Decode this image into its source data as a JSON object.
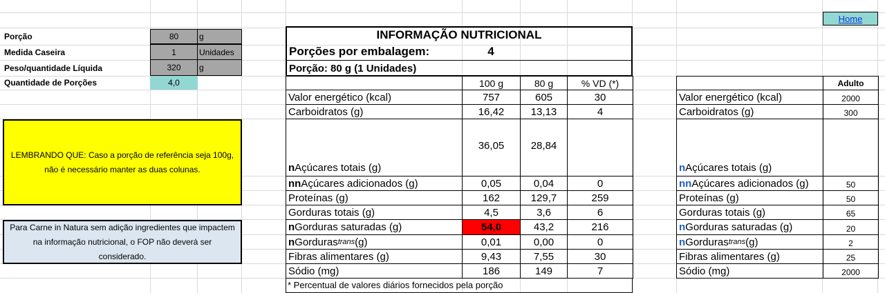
{
  "home": {
    "label": "Home"
  },
  "inputs": {
    "porcao": {
      "label": "Porção",
      "value": "80",
      "unit": "g"
    },
    "medida": {
      "label": "Medida Caseira",
      "value": "1",
      "unit": "Unidades"
    },
    "peso": {
      "label": "Peso/quantidade Líquida",
      "value": "320",
      "unit": "g"
    },
    "quantidade": {
      "label": "Quantidade de Porções",
      "value": "4,0"
    }
  },
  "notes": {
    "yellow": "LEMBRANDO QUE: Caso a porção de referência seja 100g, não é necessário manter as duas colunas.",
    "blue": "Para Carne in Natura sem adição ingredientes que impactem na informação nutricional, o FOP não deverá ser considerado."
  },
  "table": {
    "title": "INFORMAÇÃO NUTRICIONAL",
    "porcoes_label": "Porções por embalagem:",
    "porcoes_value": "4",
    "porcao_line": "Porção: 80 g (1 Unidades)",
    "headers": [
      "100 g",
      "80 g",
      "% VD (*)"
    ],
    "rows": [
      {
        "prefix": "",
        "label": "Valor energético (kcal)",
        "v100": "757",
        "vp": "605",
        "vd": "30"
      },
      {
        "prefix": "",
        "label": "Carboidratos (g)",
        "v100": "16,42",
        "vp": "13,13",
        "vd": "4"
      },
      {
        "prefix": "n",
        "label": "Açúcares totais (g)",
        "v100": "36,05",
        "vp": "28,84",
        "vd": ""
      },
      {
        "prefix": "nn",
        "label": "Açúcares adicionados (g)",
        "v100": "0,05",
        "vp": "0,04",
        "vd": "0"
      },
      {
        "prefix": "",
        "label": "Proteínas (g)",
        "v100": "162",
        "vp": "129,7",
        "vd": "259"
      },
      {
        "prefix": "",
        "label": "Gorduras totais (g)",
        "v100": "4,5",
        "vp": "3,6",
        "vd": "6"
      },
      {
        "prefix": "n",
        "label": "Gorduras saturadas (g)",
        "v100": "54,0",
        "vp": "43,2",
        "vd": "216"
      },
      {
        "prefix": "n",
        "label": "Gorduras ",
        "label_italic": "trans",
        "label_end": " (g)",
        "v100": "0,01",
        "vp": "0,00",
        "vd": "0"
      },
      {
        "prefix": "",
        "label": "Fibras alimentares (g)",
        "v100": "9,43",
        "vp": "7,55",
        "vd": "30"
      },
      {
        "prefix": "",
        "label": "Sódio (mg)",
        "v100": "186",
        "vp": "149",
        "vd": "7"
      }
    ],
    "footnote": "* Percentual de valores diários fornecidos pela porção",
    "highlight_color": "#ff0000"
  },
  "ref": {
    "header": "Adulto",
    "rows": [
      {
        "prefix": "",
        "label": "Valor energético (kcal)",
        "value": "2000"
      },
      {
        "prefix": "",
        "label": "Carboidratos (g)",
        "value": "300"
      },
      {
        "prefix": "n",
        "label": "Açúcares totais (g)",
        "value": ""
      },
      {
        "prefix": "nn",
        "label": "Açúcares adicionados (g)",
        "value": "50"
      },
      {
        "prefix": "",
        "label": "Proteínas (g)",
        "value": "50"
      },
      {
        "prefix": "",
        "label": "Gorduras totais (g)",
        "value": "65"
      },
      {
        "prefix": "n",
        "label": "Gorduras saturadas (g)",
        "value": "20"
      },
      {
        "prefix": "n",
        "label": "Gorduras ",
        "label_italic": "trans",
        "label_end": " (g)",
        "value": "2"
      },
      {
        "prefix": "",
        "label": "Fibras alimentares (g)",
        "value": "25"
      },
      {
        "prefix": "",
        "label": "Sódio (mg)",
        "value": "2000"
      }
    ]
  }
}
